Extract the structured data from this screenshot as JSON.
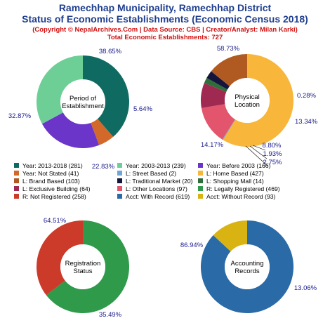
{
  "header": {
    "title_line1": "Ramechhap Municipality, Ramechhap District",
    "title_line2": "Status of Economic Establishments (Economic Census 2018)",
    "copyright": "(Copyright © NepalArchives.Com | Data Source: CBS | Creator/Analyst: Milan Karki)",
    "total": "Total Economic Establishments: 727"
  },
  "chart_data": [
    {
      "type": "pie",
      "center_label": [
        "Period of",
        "Establishment"
      ],
      "slices": [
        {
          "name": "Year: 2013-2018",
          "value": 281,
          "pct_label": "38.65%",
          "color": "#0f6b62"
        },
        {
          "name": "Year: Not Stated",
          "value": 41,
          "pct_label": "5.64%",
          "color": "#d2692a"
        },
        {
          "name": "Year: Before 2003",
          "value": 166,
          "pct_label": "22.83%",
          "color": "#6a35c8"
        },
        {
          "name": "Year: 2003-2013",
          "value": 239,
          "pct_label": "32.87%",
          "color": "#6ecf96"
        }
      ]
    },
    {
      "type": "pie",
      "center_label": [
        "Physical",
        "Location"
      ],
      "slices": [
        {
          "name": "L: Home Based",
          "value": 427,
          "pct_label": "58.73%",
          "color": "#f8b63a"
        },
        {
          "name": "L: Street Based",
          "value": 2,
          "pct_label": "0.28%",
          "color": "#6fa6d6"
        },
        {
          "name": "L: Other Locations",
          "value": 97,
          "pct_label": "13.34%",
          "color": "#e2556c"
        },
        {
          "name": "L: Exclusive Building",
          "value": 64,
          "pct_label": "8.80%",
          "color": "#a02952"
        },
        {
          "name": "L: Shopping Mall",
          "value": 14,
          "pct_label": "1.93%",
          "color": "#2f6e3a"
        },
        {
          "name": "L: Traditional Market",
          "value": 20,
          "pct_label": "2.75%",
          "color": "#14143c"
        },
        {
          "name": "L: Brand Based",
          "value": 103,
          "pct_label": "14.17%",
          "color": "#b05a22"
        }
      ]
    },
    {
      "type": "pie",
      "center_label": [
        "Registration",
        "Status"
      ],
      "slices": [
        {
          "name": "R: Legally Registered",
          "value": 469,
          "pct_label": "64.51%",
          "color": "#2e9a4a"
        },
        {
          "name": "R: Not Registered",
          "value": 258,
          "pct_label": "35.49%",
          "color": "#cc3a2a"
        }
      ]
    },
    {
      "type": "pie",
      "center_label": [
        "Accounting",
        "Records"
      ],
      "slices": [
        {
          "name": "Acct: With Record",
          "value": 619,
          "pct_label": "86.94%",
          "color": "#2a6aa6"
        },
        {
          "name": "Acct: Without Record",
          "value": 93,
          "pct_label": "13.06%",
          "color": "#d8b312"
        }
      ]
    }
  ],
  "legend": [
    {
      "label": "Year: 2013-2018 (281)",
      "color": "#0f6b62"
    },
    {
      "label": "Year: 2003-2013 (239)",
      "color": "#6ecf96"
    },
    {
      "label": "Year: Before 2003 (166)",
      "color": "#6a35c8"
    },
    {
      "label": "Year: Not Stated (41)",
      "color": "#d2692a"
    },
    {
      "label": "L: Street Based (2)",
      "color": "#6fa6d6"
    },
    {
      "label": "L: Home Based (427)",
      "color": "#f8b63a"
    },
    {
      "label": "L: Brand Based (103)",
      "color": "#b05a22"
    },
    {
      "label": "L: Traditional Market (20)",
      "color": "#14143c"
    },
    {
      "label": "L: Shopping Mall (14)",
      "color": "#2f6e3a"
    },
    {
      "label": "L: Exclusive Building (64)",
      "color": "#a02952"
    },
    {
      "label": "L: Other Locations (97)",
      "color": "#e2556c"
    },
    {
      "label": "R: Legally Registered (469)",
      "color": "#2e9a4a"
    },
    {
      "label": "R: Not Registered (258)",
      "color": "#cc3a2a"
    },
    {
      "label": "Acct: With Record (619)",
      "color": "#2a6aa6"
    },
    {
      "label": "Acct: Without Record (93)",
      "color": "#d8b312"
    }
  ]
}
